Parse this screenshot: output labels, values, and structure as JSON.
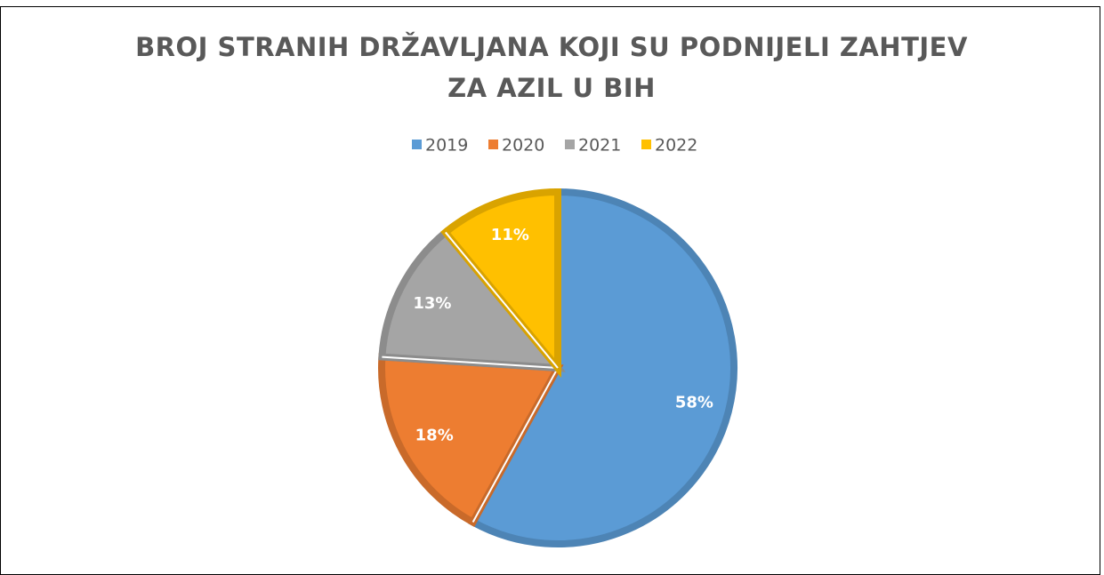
{
  "chart_data": {
    "type": "pie",
    "title": "BROJ STRANIH DRŽAVLJANA KOJI SU PODNIJELI ZAHTJEV ZA AZIL U BIH",
    "categories": [
      "2019",
      "2020",
      "2021",
      "2022"
    ],
    "values": [
      58,
      18,
      13,
      11
    ],
    "value_labels": [
      "58%",
      "18%",
      "13%",
      "11%"
    ],
    "colors": [
      "#5b9bd5",
      "#ed7d31",
      "#a5a5a5",
      "#ffc000"
    ],
    "legend": "top"
  }
}
